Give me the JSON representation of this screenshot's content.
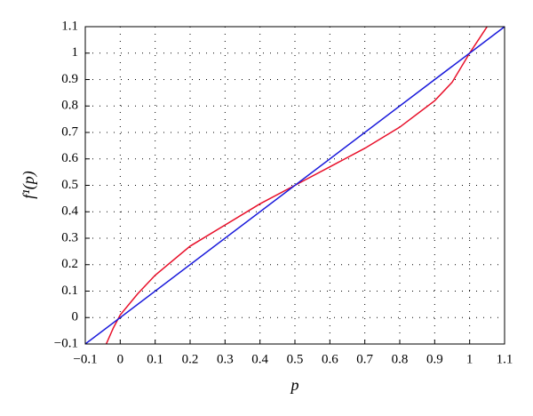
{
  "chart_data": {
    "type": "line",
    "x_label": "p",
    "y_label": "f¹(p)",
    "xlim": [
      -0.1,
      1.1
    ],
    "ylim": [
      -0.1,
      1.1
    ],
    "xticks": [
      {
        "value": -0.1,
        "label": "−0.1"
      },
      0,
      0.1,
      0.2,
      0.3,
      0.4,
      0.5,
      0.6,
      0.7,
      0.8,
      0.9,
      1,
      1.1
    ],
    "yticks": [
      {
        "value": -0.1,
        "label": "−0.1"
      },
      0,
      0.1,
      0.2,
      0.3,
      0.4,
      0.5,
      0.6,
      0.7,
      0.8,
      0.9,
      1,
      1.1
    ],
    "grid": true,
    "series": [
      {
        "color": "#e8102a",
        "x": [
          -0.04,
          -0.02,
          0,
          0.05,
          0.1,
          0.2,
          0.3,
          0.4,
          0.5,
          0.6,
          0.7,
          0.8,
          0.9,
          0.95,
          1.0,
          1.03,
          1.05
        ],
        "values": [
          -0.1,
          -0.04,
          0.01,
          0.09,
          0.16,
          0.27,
          0.35,
          0.43,
          0.5,
          0.57,
          0.64,
          0.72,
          0.82,
          0.89,
          1.0,
          1.06,
          1.1
        ]
      },
      {
        "color": "#1a1adb",
        "x": [
          -0.1,
          1.1
        ],
        "values": [
          -0.1,
          1.1
        ]
      }
    ]
  }
}
